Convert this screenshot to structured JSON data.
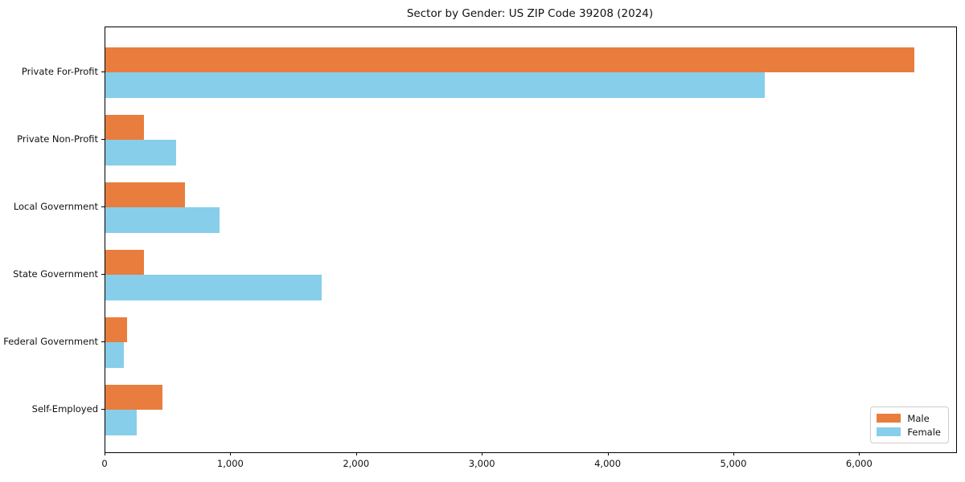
{
  "chart_data": {
    "type": "bar",
    "orientation": "horizontal",
    "title": "Sector by Gender: US ZIP Code 39208 (2024)",
    "xlabel": "",
    "ylabel": "",
    "categories": [
      "Private For-Profit",
      "Private Non-Profit",
      "Local Government",
      "State Government",
      "Federal Government",
      "Self-Employed"
    ],
    "series": [
      {
        "name": "Male",
        "color": "#e87d3e",
        "values": [
          6430,
          310,
          630,
          310,
          170,
          455
        ]
      },
      {
        "name": "Female",
        "color": "#87ceeb",
        "values": [
          5240,
          560,
          910,
          1720,
          150,
          250
        ]
      }
    ],
    "xlim": [
      0,
      6765
    ],
    "xticks": [
      0,
      1000,
      2000,
      3000,
      4000,
      5000,
      6000
    ],
    "xtick_labels": [
      "0",
      "1,000",
      "2,000",
      "3,000",
      "4,000",
      "5,000",
      "6,000"
    ],
    "grid": false,
    "legend_position": "lower right",
    "colors": {
      "male": "#e87d3e",
      "female": "#87ceeb",
      "text": "#111111",
      "spine": "#000000",
      "legend_border": "#cccccc"
    }
  }
}
